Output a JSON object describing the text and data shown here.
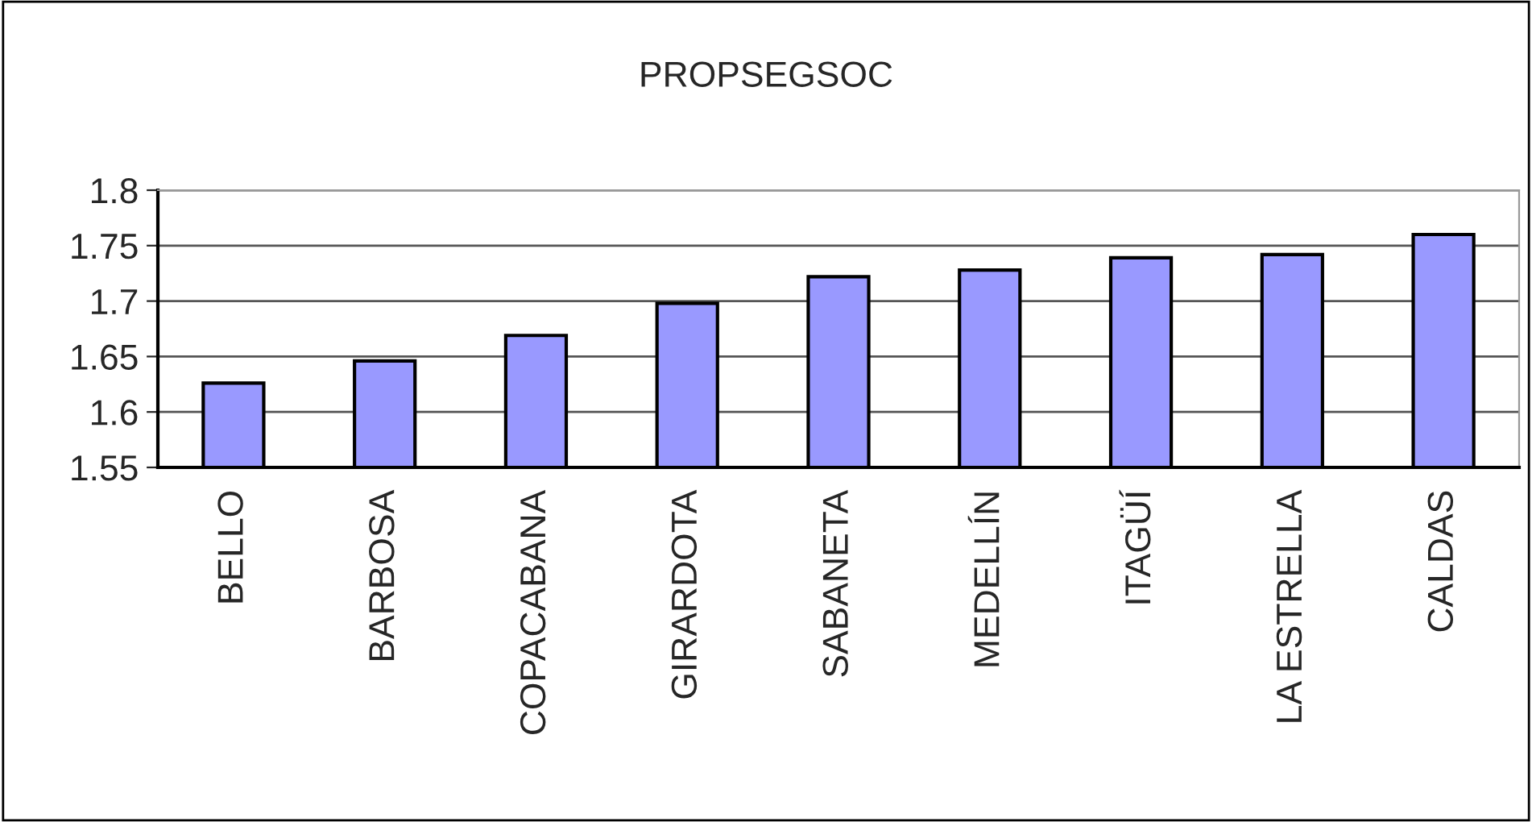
{
  "chart_data": {
    "type": "bar",
    "title": "PROPSEGSOC",
    "categories": [
      "BELLO",
      "BARBOSA",
      "COPACABANA",
      "GIRARDOTA",
      "SABANETA",
      "MEDELLÍN",
      "ITAGÜÍ",
      "LA ESTRELLA",
      "CALDAS"
    ],
    "values": [
      1.626,
      1.646,
      1.669,
      1.698,
      1.722,
      1.728,
      1.739,
      1.742,
      1.76
    ],
    "color": "#9999ff",
    "ylim": [
      1.55,
      1.8
    ],
    "yticks": [
      1.55,
      1.6,
      1.65,
      1.7,
      1.75,
      1.8
    ],
    "grid": "y",
    "legend": false
  }
}
